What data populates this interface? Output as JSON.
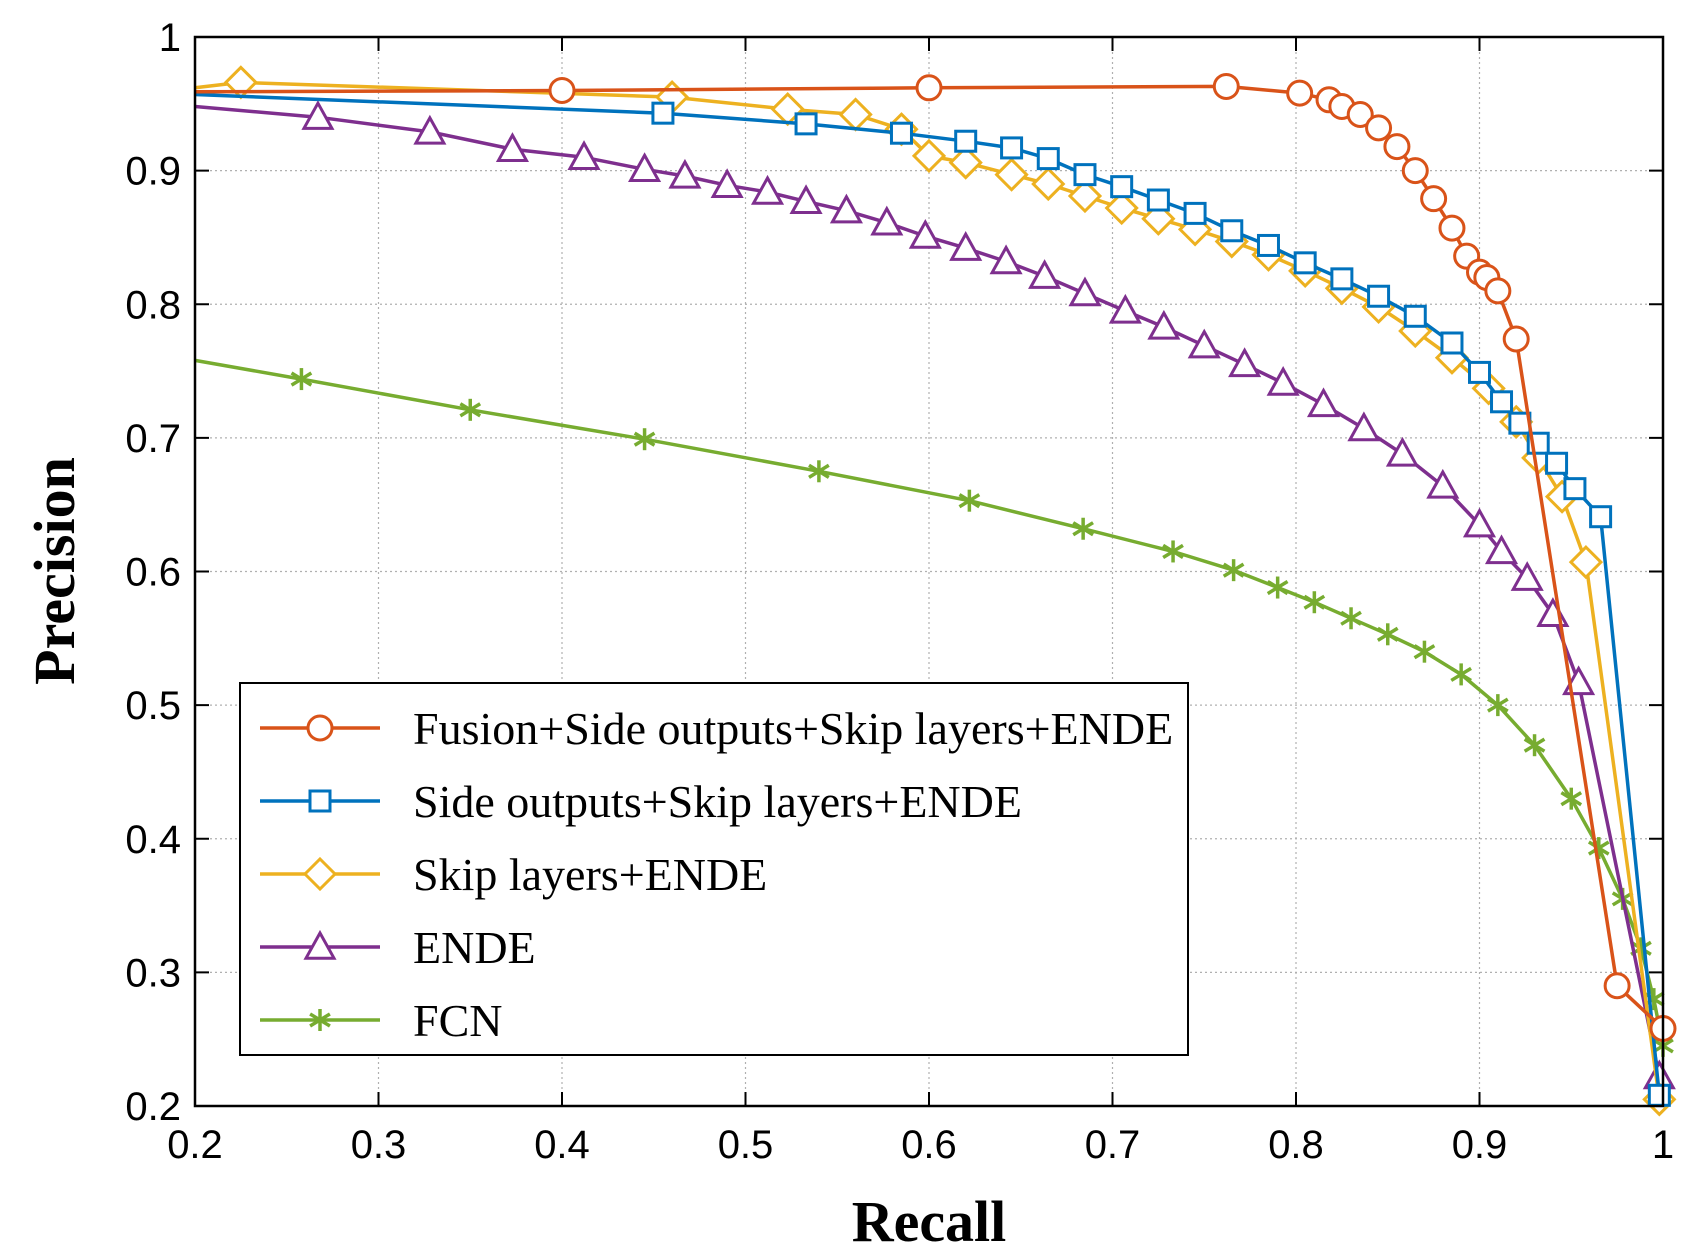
{
  "chart_data": {
    "type": "line",
    "title": "",
    "xlabel": "Recall",
    "ylabel": "Precision",
    "xlim": [
      0.2,
      1.0
    ],
    "ylim": [
      0.2,
      1.0
    ],
    "grid": true,
    "legend_position": "bottom-left",
    "x_ticks": [
      0.2,
      0.3,
      0.4,
      0.5,
      0.6,
      0.7,
      0.8,
      0.9,
      1.0
    ],
    "x_tick_labels": [
      "0.2",
      "0.3",
      "0.4",
      "0.5",
      "0.6",
      "0.7",
      "0.8",
      "0.9",
      "1"
    ],
    "y_ticks": [
      0.2,
      0.3,
      0.4,
      0.5,
      0.6,
      0.7,
      0.8,
      0.9,
      1.0
    ],
    "y_tick_labels": [
      "0.2",
      "0.3",
      "0.4",
      "0.5",
      "0.6",
      "0.7",
      "0.8",
      "0.9",
      "1"
    ],
    "series": [
      {
        "name": "Fusion+Side outputs+Skip layers+ENDE",
        "color": "#D95319",
        "marker": "circle",
        "x": [
          0.2,
          0.4,
          0.6,
          0.762,
          0.802,
          0.818,
          0.825,
          0.835,
          0.845,
          0.855,
          0.865,
          0.875,
          0.885,
          0.893,
          0.9,
          0.904,
          0.91,
          0.92,
          0.975,
          1.0
        ],
        "y": [
          0.959,
          0.96,
          0.962,
          0.963,
          0.958,
          0.953,
          0.948,
          0.942,
          0.932,
          0.918,
          0.9,
          0.879,
          0.857,
          0.836,
          0.824,
          0.82,
          0.81,
          0.774,
          0.29,
          0.258
        ]
      },
      {
        "name": "Side outputs+Skip layers+ENDE",
        "color": "#0072BD",
        "marker": "square",
        "x": [
          0.2,
          0.455,
          0.533,
          0.585,
          0.62,
          0.645,
          0.665,
          0.685,
          0.705,
          0.725,
          0.745,
          0.765,
          0.785,
          0.805,
          0.825,
          0.845,
          0.865,
          0.885,
          0.9,
          0.912,
          0.922,
          0.932,
          0.942,
          0.952,
          0.966,
          0.998
        ],
        "y": [
          0.957,
          0.943,
          0.935,
          0.928,
          0.922,
          0.917,
          0.909,
          0.897,
          0.888,
          0.878,
          0.868,
          0.855,
          0.844,
          0.831,
          0.819,
          0.806,
          0.791,
          0.771,
          0.749,
          0.727,
          0.711,
          0.696,
          0.681,
          0.662,
          0.641,
          0.208
        ]
      },
      {
        "name": "Skip layers+ENDE",
        "color": "#EDB120",
        "marker": "diamond",
        "x": [
          0.2,
          0.225,
          0.46,
          0.523,
          0.56,
          0.585,
          0.6,
          0.62,
          0.645,
          0.665,
          0.685,
          0.705,
          0.725,
          0.745,
          0.765,
          0.785,
          0.805,
          0.825,
          0.845,
          0.865,
          0.885,
          0.905,
          0.92,
          0.932,
          0.945,
          0.958,
          0.998
        ],
        "y": [
          0.962,
          0.966,
          0.955,
          0.946,
          0.942,
          0.931,
          0.911,
          0.906,
          0.897,
          0.89,
          0.881,
          0.872,
          0.864,
          0.856,
          0.847,
          0.837,
          0.825,
          0.812,
          0.798,
          0.78,
          0.76,
          0.737,
          0.712,
          0.685,
          0.656,
          0.607,
          0.205
        ]
      },
      {
        "name": "ENDE",
        "color": "#7E2F8E",
        "marker": "triangle",
        "x": [
          0.2,
          0.267,
          0.328,
          0.373,
          0.412,
          0.445,
          0.467,
          0.49,
          0.512,
          0.533,
          0.555,
          0.577,
          0.598,
          0.62,
          0.642,
          0.663,
          0.685,
          0.707,
          0.728,
          0.75,
          0.772,
          0.793,
          0.815,
          0.837,
          0.858,
          0.88,
          0.9,
          0.912,
          0.926,
          0.94,
          0.954,
          0.998
        ],
        "y": [
          0.948,
          0.94,
          0.929,
          0.916,
          0.91,
          0.901,
          0.896,
          0.889,
          0.884,
          0.877,
          0.87,
          0.861,
          0.851,
          0.842,
          0.832,
          0.821,
          0.808,
          0.795,
          0.783,
          0.769,
          0.755,
          0.741,
          0.725,
          0.707,
          0.688,
          0.664,
          0.635,
          0.615,
          0.595,
          0.568,
          0.517,
          0.222
        ]
      },
      {
        "name": "FCN",
        "color": "#77AC30",
        "marker": "asterisk",
        "x": [
          0.2,
          0.258,
          0.35,
          0.445,
          0.54,
          0.622,
          0.684,
          0.733,
          0.766,
          0.79,
          0.81,
          0.83,
          0.85,
          0.87,
          0.89,
          0.91,
          0.93,
          0.95,
          0.965,
          0.978,
          0.988,
          0.995,
          1.0
        ],
        "y": [
          0.758,
          0.744,
          0.721,
          0.699,
          0.675,
          0.653,
          0.632,
          0.615,
          0.601,
          0.588,
          0.577,
          0.565,
          0.553,
          0.54,
          0.523,
          0.5,
          0.47,
          0.43,
          0.393,
          0.355,
          0.318,
          0.28,
          0.245
        ]
      }
    ]
  }
}
